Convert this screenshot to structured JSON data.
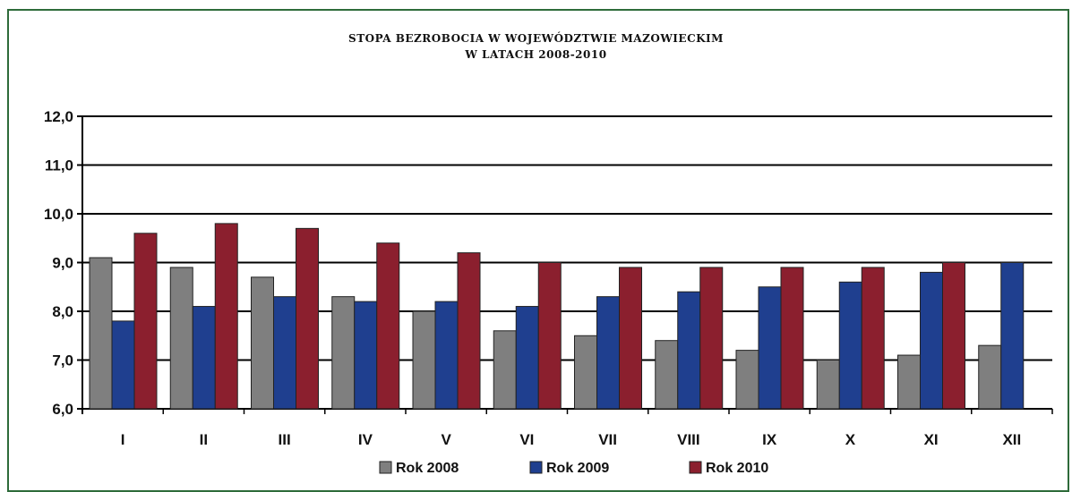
{
  "chart_data": {
    "type": "bar",
    "title": "STOPA BEZROBOCIA W WOJEWÓDZTWIE MAZOWIECKIM",
    "subtitle": "W LATACH 2008-2010",
    "xlabel": "",
    "ylabel": "",
    "ylim": [
      6.0,
      12.0
    ],
    "yticks": [
      "6,0",
      "7,0",
      "8,0",
      "9,0",
      "10,0",
      "11,0",
      "12,0"
    ],
    "grid": true,
    "legend_position": "bottom",
    "categories": [
      "I",
      "II",
      "III",
      "IV",
      "V",
      "VI",
      "VII",
      "VIII",
      "IX",
      "X",
      "XI",
      "XII"
    ],
    "series": [
      {
        "name": "Rok 2008",
        "color": "#7f7f7f",
        "values": [
          9.1,
          8.9,
          8.7,
          8.3,
          8.0,
          7.6,
          7.5,
          7.4,
          7.2,
          7.0,
          7.1,
          7.3
        ]
      },
      {
        "name": "Rok 2009",
        "color": "#1f3f8f",
        "values": [
          7.8,
          8.1,
          8.3,
          8.2,
          8.2,
          8.1,
          8.3,
          8.4,
          8.5,
          8.6,
          8.8,
          9.0
        ]
      },
      {
        "name": "Rok 2010",
        "color": "#8b1f2e",
        "values": [
          9.6,
          9.8,
          9.7,
          9.4,
          9.2,
          9.0,
          8.9,
          8.9,
          8.9,
          8.9,
          9.0,
          null
        ]
      }
    ]
  }
}
